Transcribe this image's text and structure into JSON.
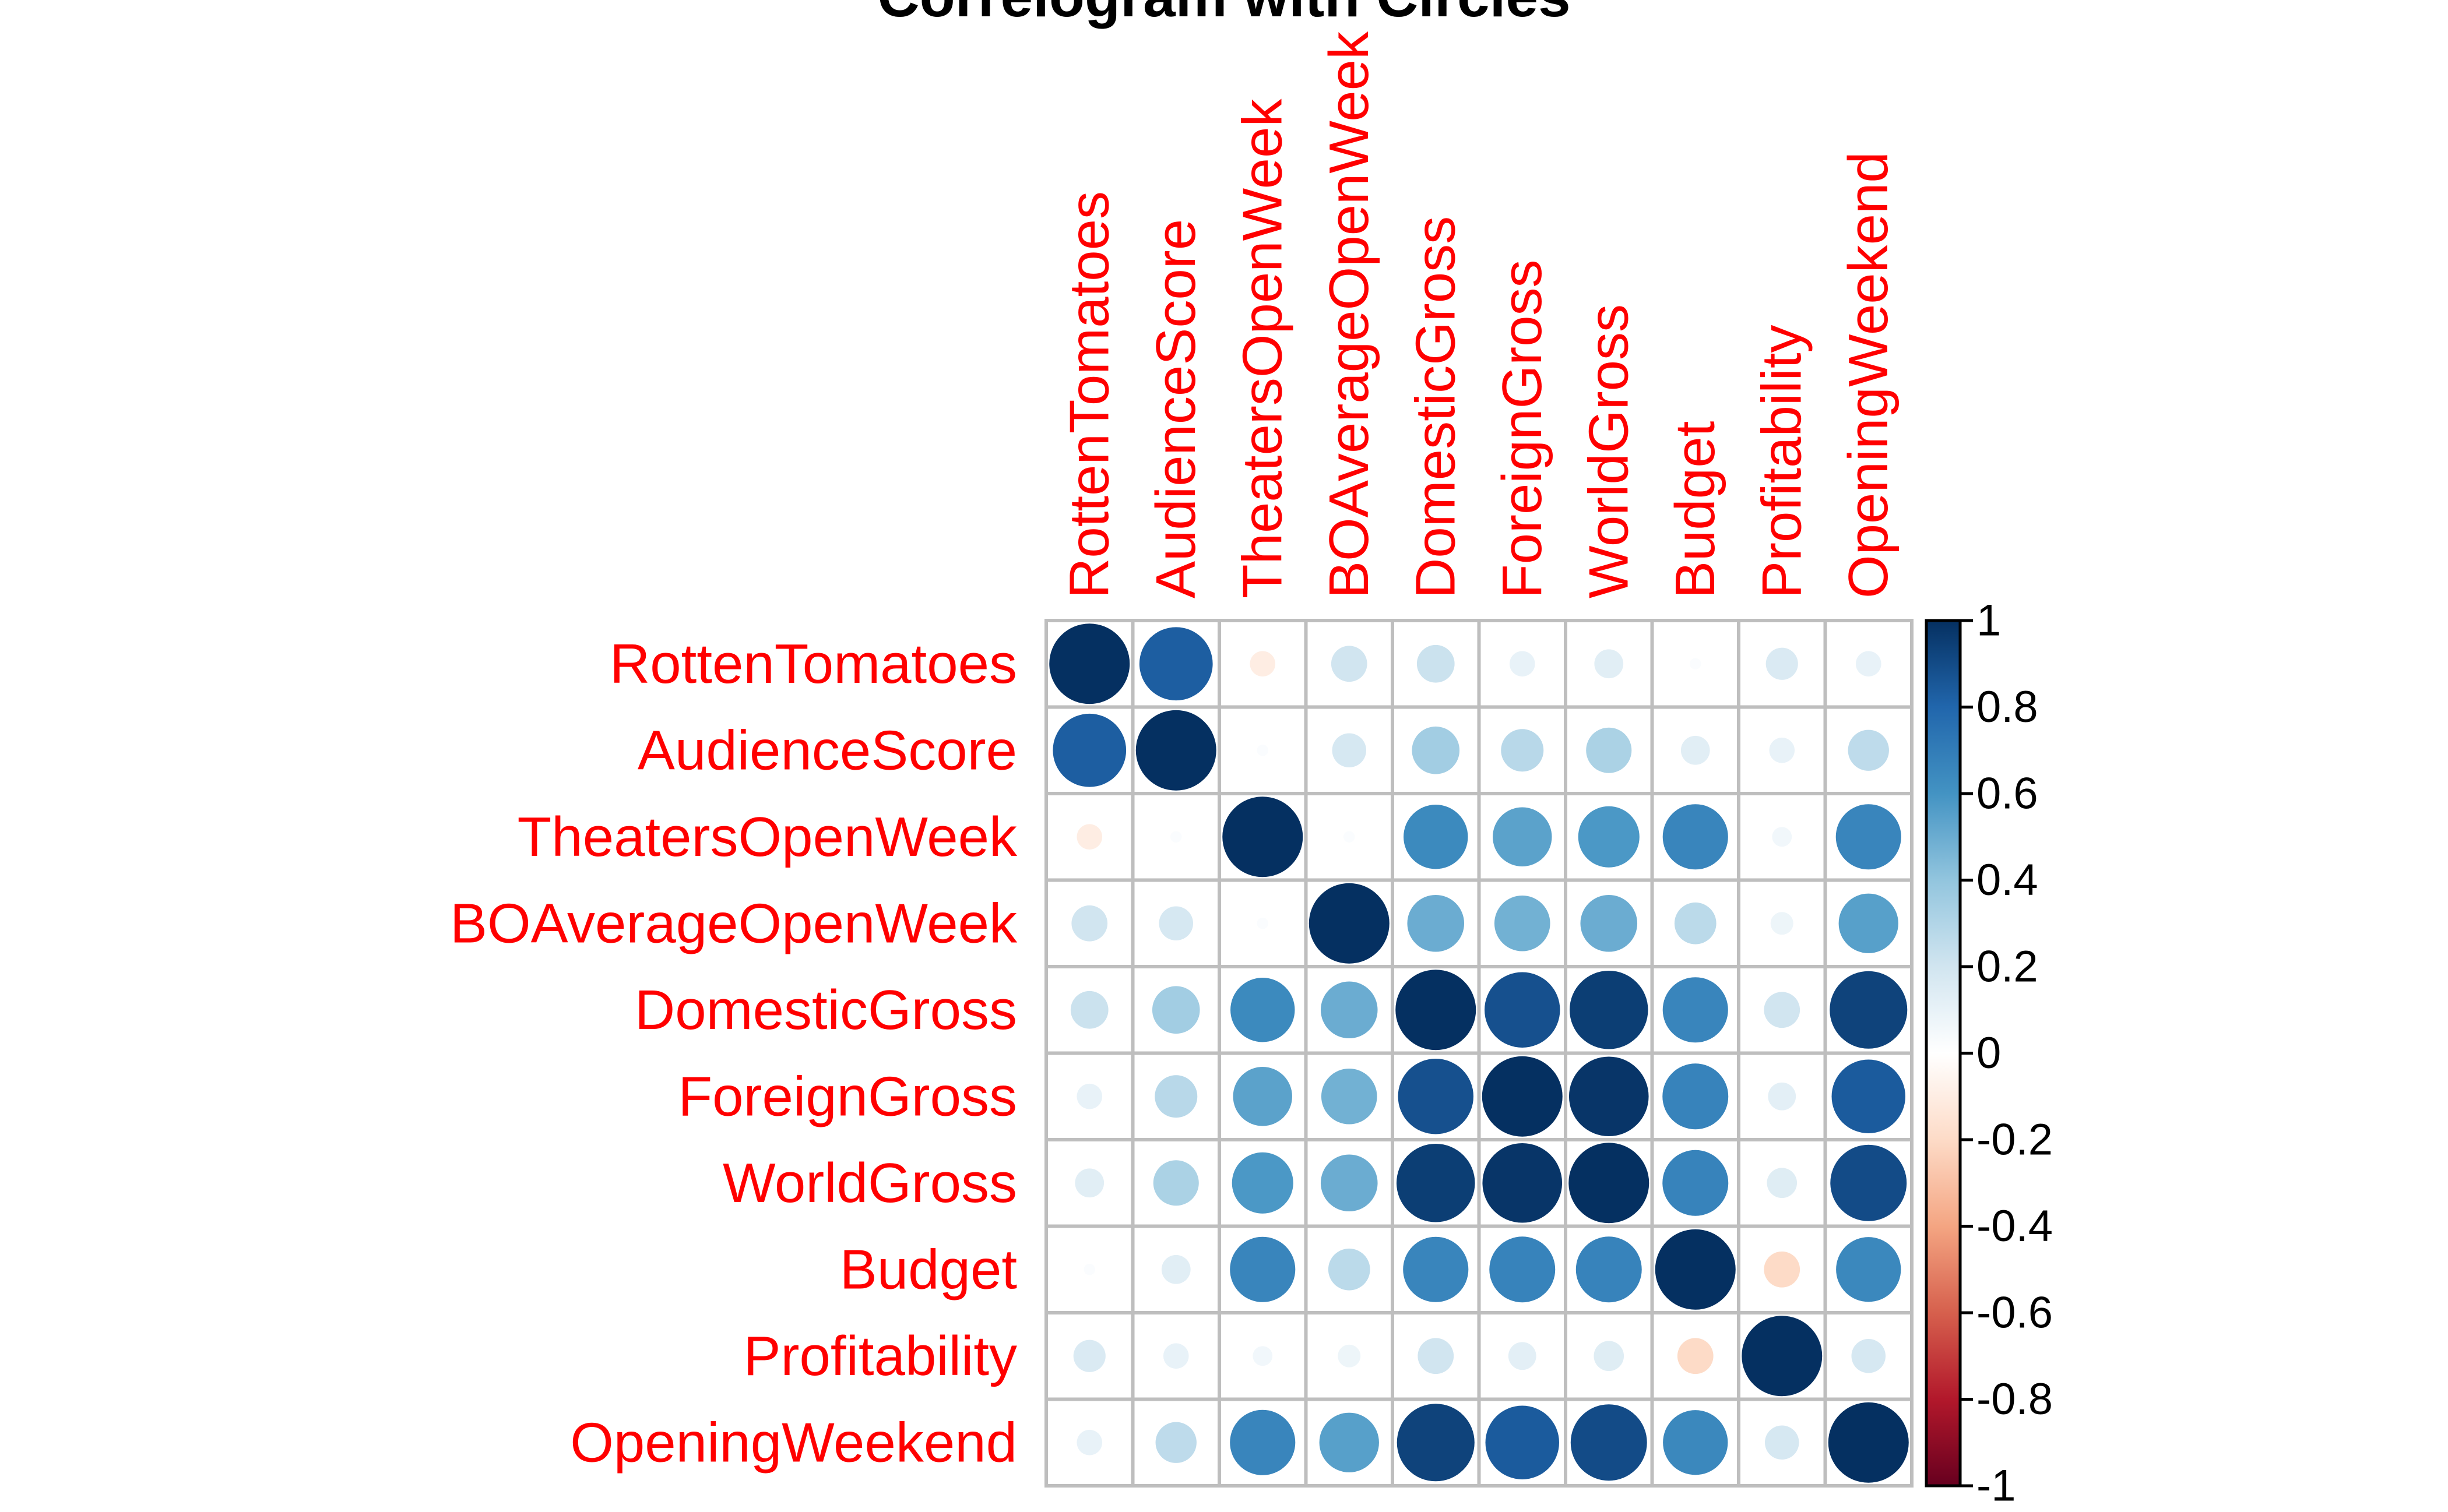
{
  "chart_data": {
    "type": "heatmap",
    "title": "Correlogram with Circles",
    "variables": [
      "RottenTomatoes",
      "AudienceScore",
      "TheatersOpenWeek",
      "BOAverageOpenWeek",
      "DomesticGross",
      "ForeignGross",
      "WorldGross",
      "Budget",
      "Profitability",
      "OpeningWeekend"
    ],
    "matrix": [
      [
        1.0,
        0.83,
        -0.1,
        0.2,
        0.22,
        0.1,
        0.13,
        0.02,
        0.16,
        0.1
      ],
      [
        0.83,
        1.0,
        0.02,
        0.18,
        0.35,
        0.28,
        0.32,
        0.13,
        0.1,
        0.26
      ],
      [
        -0.1,
        0.02,
        1.0,
        0.02,
        0.64,
        0.54,
        0.58,
        0.66,
        0.06,
        0.66
      ],
      [
        0.2,
        0.18,
        0.02,
        1.0,
        0.5,
        0.48,
        0.5,
        0.27,
        0.08,
        0.55
      ],
      [
        0.22,
        0.35,
        0.64,
        0.5,
        1.0,
        0.88,
        0.95,
        0.66,
        0.2,
        0.93
      ],
      [
        0.1,
        0.28,
        0.54,
        0.48,
        0.88,
        1.0,
        0.98,
        0.67,
        0.12,
        0.84
      ],
      [
        0.13,
        0.32,
        0.58,
        0.5,
        0.95,
        0.98,
        1.0,
        0.67,
        0.14,
        0.9
      ],
      [
        0.02,
        0.13,
        0.66,
        0.27,
        0.66,
        0.67,
        0.67,
        1.0,
        -0.2,
        0.65
      ],
      [
        0.16,
        0.1,
        0.06,
        0.08,
        0.2,
        0.12,
        0.14,
        -0.2,
        1.0,
        0.18
      ],
      [
        0.1,
        0.26,
        0.66,
        0.55,
        0.93,
        0.84,
        0.9,
        0.65,
        0.18,
        1.0
      ]
    ],
    "value_range": [
      -1,
      1
    ],
    "legend": {
      "ticks": [
        "1",
        "0.8",
        "0.6",
        "0.4",
        "0.2",
        "0",
        "-0.2",
        "-0.4",
        "-0.6",
        "-0.8",
        "-1"
      ],
      "placement": "right"
    },
    "colors": {
      "label_color": "#ff0000",
      "grid_color": "#bebebe",
      "scale": [
        "#67001f",
        "#b2182b",
        "#d6604d",
        "#f4a582",
        "#fddbc7",
        "#ffffff",
        "#d1e5f0",
        "#92c5de",
        "#4393c3",
        "#2166ac",
        "#053061"
      ]
    }
  }
}
